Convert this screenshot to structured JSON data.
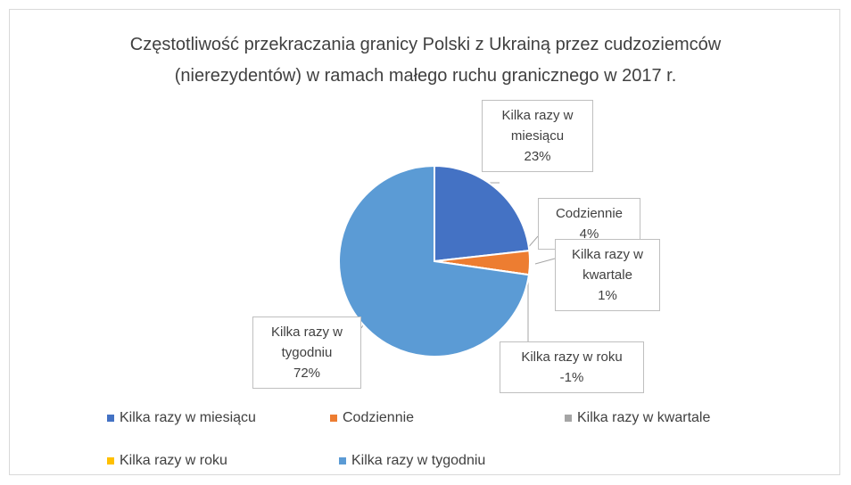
{
  "chart_data": {
    "type": "pie",
    "title": "Częstotliwość przekraczania granicy Polski z Ukrainą przez cudzoziemców (nierezydentów) w ramach małego ruchu granicznego w 2017 r.",
    "categories": [
      "Kilka razy w miesiącu",
      "Codziennie",
      "Kilka razy w kwartale",
      "Kilka razy w roku",
      "Kilka razy w tygodniu"
    ],
    "values": [
      23,
      4,
      1,
      -1,
      72
    ],
    "value_labels": [
      "23%",
      "4%",
      "1%",
      "-1%",
      "72%"
    ],
    "colors": [
      "#4472c4",
      "#ed7d31",
      "#a5a5a5",
      "#ffc000",
      "#5b9bd5"
    ],
    "legend": "bottom"
  }
}
